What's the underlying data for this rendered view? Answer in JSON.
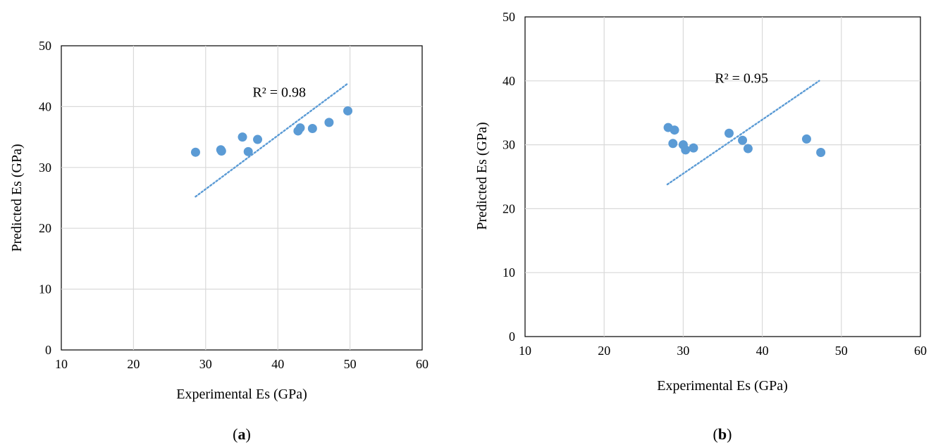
{
  "chart_data": [
    {
      "type": "scatter",
      "panel_label": "a",
      "xlabel": "Experimental Es (GPa)",
      "ylabel": "Predicted Es (GPa)",
      "xlim": [
        10,
        60
      ],
      "ylim": [
        0,
        50
      ],
      "xticks": [
        10,
        20,
        30,
        40,
        50,
        60
      ],
      "yticks": [
        0,
        10,
        20,
        30,
        40,
        50
      ],
      "grid": true,
      "marker_color": "#5b9bd5",
      "trendline_color": "#5b9bd5",
      "points": [
        {
          "x": 28.6,
          "y": 32.5
        },
        {
          "x": 32.1,
          "y": 32.9
        },
        {
          "x": 32.2,
          "y": 32.7
        },
        {
          "x": 35.1,
          "y": 35.0
        },
        {
          "x": 35.9,
          "y": 32.6
        },
        {
          "x": 37.2,
          "y": 34.6
        },
        {
          "x": 42.8,
          "y": 36.0
        },
        {
          "x": 43.1,
          "y": 36.5
        },
        {
          "x": 44.8,
          "y": 36.4
        },
        {
          "x": 47.1,
          "y": 37.4
        },
        {
          "x": 49.7,
          "y": 39.3
        }
      ],
      "trendline": {
        "x": [
          28.6,
          49.7
        ],
        "y": [
          25.2,
          43.8
        ]
      },
      "r2_label": "R² = 0.98",
      "r2_anchor": {
        "x": 36.5,
        "y": 41.6
      }
    },
    {
      "type": "scatter",
      "panel_label": "b",
      "xlabel": "Experimental Es (GPa)",
      "ylabel": "Predicted Es (GPa)",
      "xlim": [
        10,
        60
      ],
      "ylim": [
        0,
        50
      ],
      "xticks": [
        10,
        20,
        30,
        40,
        50,
        60
      ],
      "yticks": [
        0,
        10,
        20,
        30,
        40,
        50
      ],
      "grid": true,
      "marker_color": "#5b9bd5",
      "trendline_color": "#5b9bd5",
      "points": [
        {
          "x": 28.1,
          "y": 32.7
        },
        {
          "x": 28.7,
          "y": 30.2
        },
        {
          "x": 28.9,
          "y": 32.3
        },
        {
          "x": 30.0,
          "y": 30.0
        },
        {
          "x": 30.3,
          "y": 29.2
        },
        {
          "x": 31.3,
          "y": 29.5
        },
        {
          "x": 35.8,
          "y": 31.8
        },
        {
          "x": 37.5,
          "y": 30.7
        },
        {
          "x": 38.2,
          "y": 29.4
        },
        {
          "x": 45.6,
          "y": 30.9
        },
        {
          "x": 47.4,
          "y": 28.8
        }
      ],
      "trendline": {
        "x": [
          28.0,
          47.2
        ],
        "y": [
          23.8,
          40.0
        ]
      },
      "r2_label": "R² = 0.95",
      "r2_anchor": {
        "x": 34.0,
        "y": 39.7
      }
    }
  ]
}
